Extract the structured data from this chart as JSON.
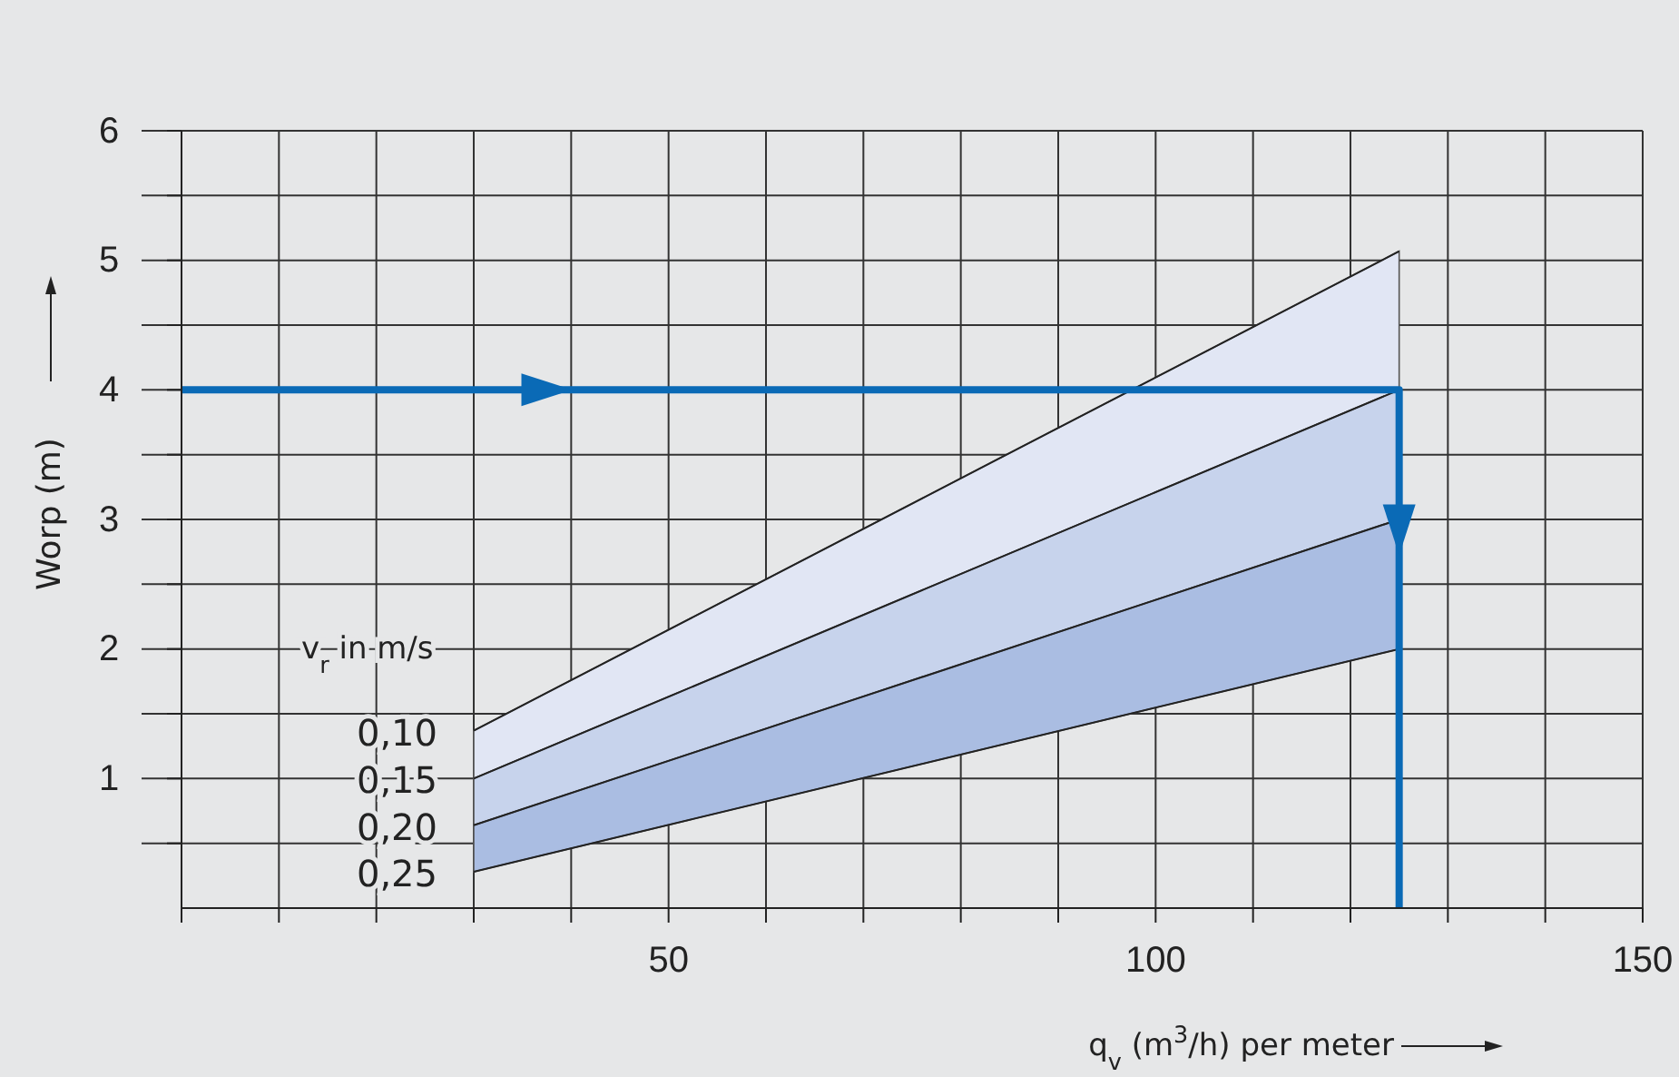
{
  "chart_data": {
    "type": "area",
    "xlabel": "q$_{v}$ (m$^{3}$/h) per meter",
    "ylabel": "Worp  (m)",
    "legend_title": "v$_{r}$  in m/s",
    "xlim": [
      0,
      150
    ],
    "ylim": [
      0,
      6
    ],
    "xticks": [
      {
        "value": 0,
        "label": null
      },
      {
        "value": 10,
        "label": null
      },
      {
        "value": 20,
        "label": null
      },
      {
        "value": 30,
        "label": null
      },
      {
        "value": 40,
        "label": null
      },
      50,
      {
        "value": 60,
        "label": null
      },
      {
        "value": 70,
        "label": null
      },
      {
        "value": 80,
        "label": null
      },
      {
        "value": 90,
        "label": null
      },
      100,
      {
        "value": 110,
        "label": null
      },
      {
        "value": 120,
        "label": null
      },
      {
        "value": 130,
        "label": null
      },
      {
        "value": 140,
        "label": null
      },
      150
    ],
    "yticks": [
      {
        "value": 0.5,
        "label": null
      },
      1,
      {
        "value": 1.5,
        "label": null
      },
      2,
      {
        "value": 2.5,
        "label": null
      },
      3,
      {
        "value": 3.5,
        "label": null
      },
      4,
      {
        "value": 4.5,
        "label": null
      },
      5,
      {
        "value": 5.5,
        "label": null
      },
      6
    ],
    "grid": true,
    "line_style": "solid",
    "series": [
      {
        "name": "0,10",
        "color": "#e1e6f4",
        "x": [
          30,
          125
        ],
        "values": [
          1.37,
          5.07
        ]
      },
      {
        "name": "0,15",
        "color": "#c7d3ec",
        "x": [
          30,
          125
        ],
        "values": [
          1.0,
          4.0
        ]
      },
      {
        "name": "0,20",
        "color": "#aabde2",
        "x": [
          30,
          125
        ],
        "values": [
          0.64,
          3.0
        ]
      },
      {
        "name": "0,25",
        "type": "line",
        "color": "#222222",
        "x": [
          30,
          125
        ],
        "values": [
          0.28,
          2.0
        ]
      },
      {
        "type": "line",
        "color": "#0a6ab6",
        "x": [
          0,
          125,
          125
        ],
        "values": [
          4.0,
          4.0,
          0
        ]
      }
    ]
  }
}
